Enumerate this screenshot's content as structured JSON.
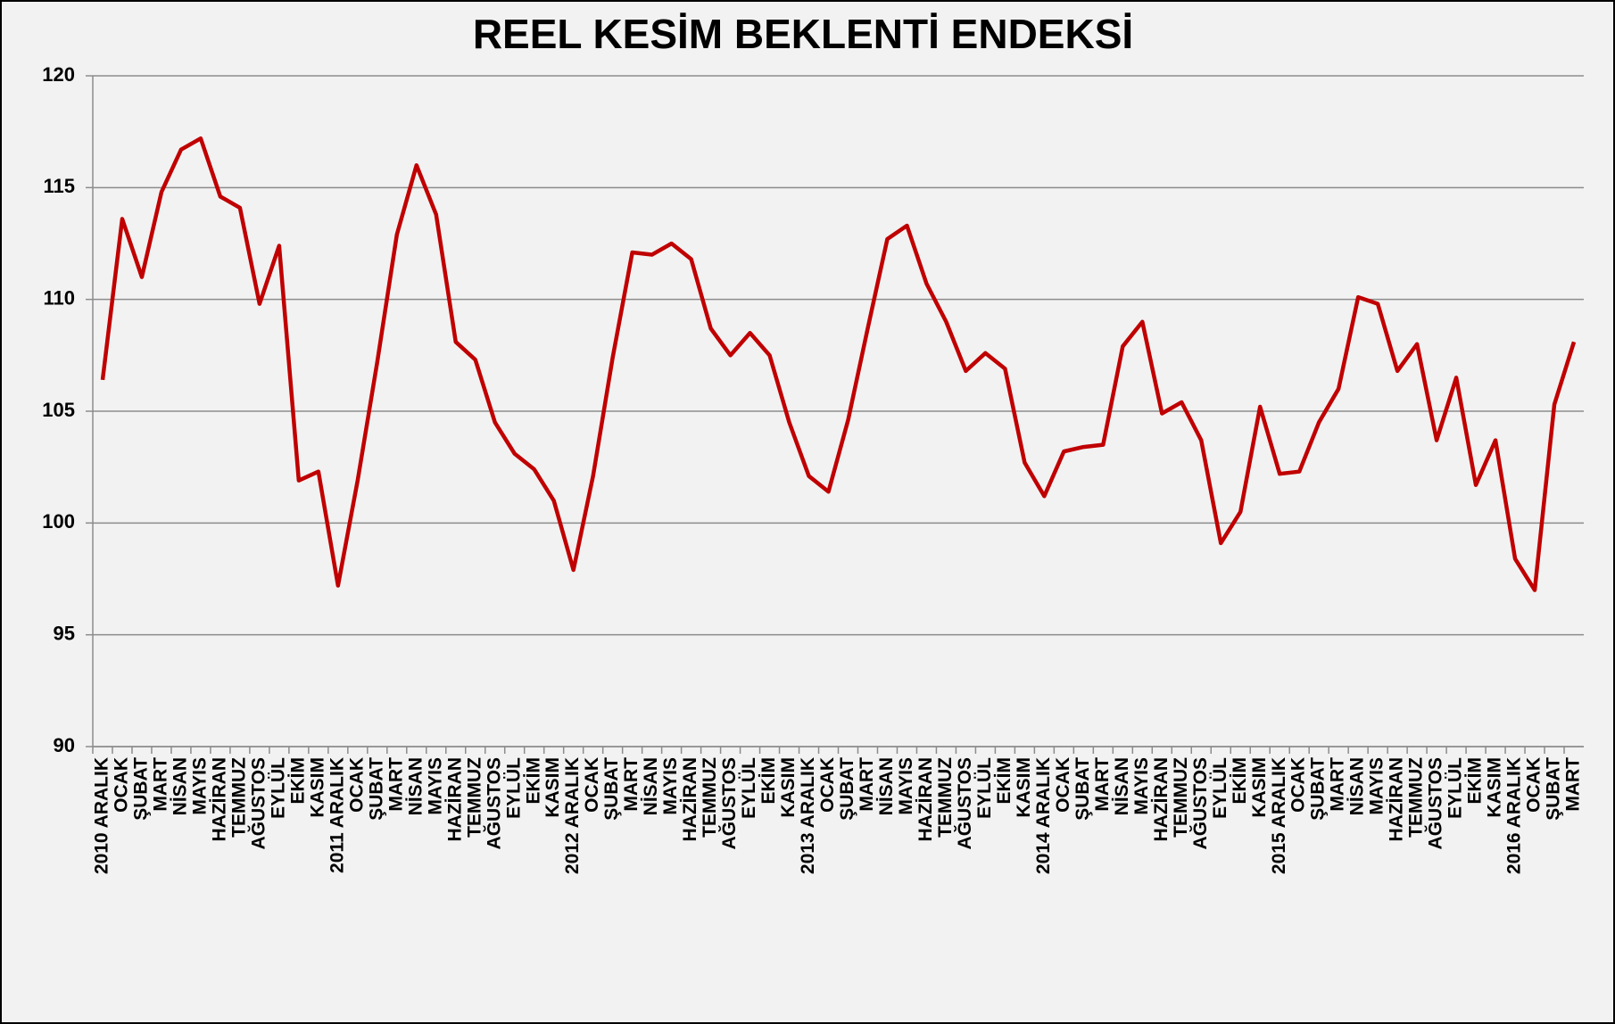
{
  "chart_data": {
    "type": "line",
    "title": "REEL KESİM BEKLENTİ ENDEKSİ",
    "categories": [
      "2010 ARALIK",
      "OCAK",
      "ŞUBAT",
      "MART",
      "NİSAN",
      "MAYIS",
      "HAZİRAN",
      "TEMMUZ",
      "AĞUSTOS",
      "EYLÜL",
      "EKİM",
      "KASIM",
      "2011 ARALIK",
      "OCAK",
      "ŞUBAT",
      "MART",
      "NİSAN",
      "MAYIS",
      "HAZİRAN",
      "TEMMUZ",
      "AĞUSTOS",
      "EYLÜL",
      "EKİM",
      "KASIM",
      "2012 ARALIK",
      "OCAK",
      "ŞUBAT",
      "MART",
      "NİSAN",
      "MAYIS",
      "HAZİRAN",
      "TEMMUZ",
      "AĞUSTOS",
      "EYLÜL",
      "EKİM",
      "KASIM",
      "2013 ARALIK",
      "OCAK",
      "ŞUBAT",
      "MART",
      "NİSAN",
      "MAYIS",
      "HAZİRAN",
      "TEMMUZ",
      "AĞUSTOS",
      "EYLÜL",
      "EKİM",
      "KASIM",
      "2014 ARALIK",
      "OCAK",
      "ŞUBAT",
      "MART",
      "NİSAN",
      "MAYIS",
      "HAZİRAN",
      "TEMMUZ",
      "AĞUSTOS",
      "EYLÜL",
      "EKİM",
      "KASIM",
      "2015 ARALIK",
      "OCAK",
      "ŞUBAT",
      "MART",
      "NİSAN",
      "MAYIS",
      "HAZİRAN",
      "TEMMUZ",
      "AĞUSTOS",
      "EYLÜL",
      "EKİM",
      "KASIM",
      "2016 ARALIK",
      "OCAK",
      "ŞUBAT",
      "MART"
    ],
    "series": [
      {
        "color": "#c00000",
        "values": [
          106.4,
          113.6,
          111.0,
          114.8,
          116.7,
          117.2,
          114.6,
          114.1,
          109.8,
          112.4,
          101.9,
          102.3,
          97.2,
          101.9,
          107.2,
          112.9,
          116.0,
          113.8,
          108.1,
          107.3,
          104.5,
          103.1,
          102.4,
          101.0,
          97.9,
          102.1,
          107.4,
          112.1,
          112.0,
          112.5,
          111.8,
          108.7,
          107.5,
          108.5,
          107.5,
          104.5,
          102.1,
          101.4,
          104.6,
          108.7,
          112.7,
          113.3,
          110.7,
          109.0,
          106.8,
          107.6,
          106.9,
          102.7,
          101.2,
          103.2,
          103.4,
          103.5,
          107.9,
          109.0,
          104.9,
          105.4,
          103.7,
          99.1,
          100.5,
          105.2,
          102.2,
          102.3,
          104.5,
          106.0,
          110.1,
          109.8,
          106.8,
          108.0,
          103.7,
          106.5,
          101.7,
          103.7,
          98.4,
          97.0,
          105.3,
          108.1
        ]
      }
    ],
    "ylim": [
      90,
      120
    ],
    "yticks": [
      90,
      95,
      100,
      105,
      110,
      115,
      120
    ],
    "grid": true
  }
}
